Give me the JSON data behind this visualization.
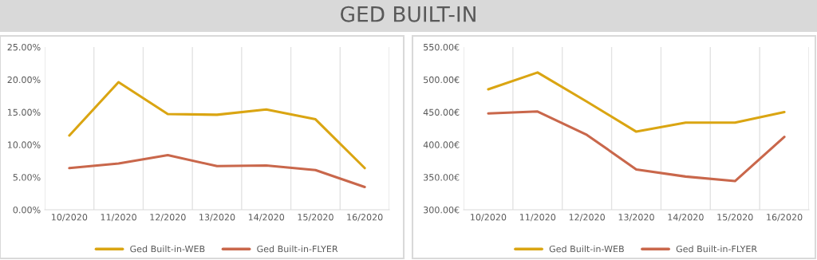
{
  "chart_data": [
    {
      "type": "line",
      "title": "GED BUILT-IN",
      "categories": [
        "10/2020",
        "11/2020",
        "12/2020",
        "13/2020",
        "14/2020",
        "15/2020",
        "16/2020"
      ],
      "series": [
        {
          "name": "Ged Built-in-WEB",
          "color": "#daa512",
          "values": [
            11.4,
            19.6,
            14.7,
            14.6,
            15.4,
            13.9,
            6.4
          ]
        },
        {
          "name": "Ged Built-in-FLYER",
          "color": "#c9674b",
          "values": [
            6.4,
            7.1,
            8.4,
            6.7,
            6.8,
            6.1,
            3.5
          ]
        }
      ],
      "ylim": [
        0,
        25
      ],
      "yticks": [
        {
          "value": 0,
          "label": "0.00%"
        },
        {
          "value": 5,
          "label": "5.00%"
        },
        {
          "value": 10,
          "label": "10.00%"
        },
        {
          "value": 15,
          "label": "15.00%"
        },
        {
          "value": 20,
          "label": "20.00%"
        },
        {
          "value": 25,
          "label": "25.00%"
        }
      ],
      "grid": "x",
      "legend": "bottom",
      "marker": "none",
      "line_style": "solid"
    },
    {
      "type": "line",
      "categories": [
        "10/2020",
        "11/2020",
        "12/2020",
        "13/2020",
        "14/2020",
        "15/2020",
        "16/2020"
      ],
      "series": [
        {
          "name": "Ged Built-in-WEB",
          "color": "#daa512",
          "values": [
            485,
            511,
            466,
            420,
            434,
            434,
            450
          ]
        },
        {
          "name": "Ged Built-in-FLYER",
          "color": "#c9674b",
          "values": [
            448,
            451,
            415,
            362,
            351,
            344,
            412
          ]
        }
      ],
      "ylim": [
        300,
        550
      ],
      "yticks": [
        {
          "value": 300,
          "label": "300.00€"
        },
        {
          "value": 350,
          "label": "350.00€"
        },
        {
          "value": 400,
          "label": "400.00€"
        },
        {
          "value": 450,
          "label": "450.00€"
        },
        {
          "value": 500,
          "label": "500.00€"
        },
        {
          "value": 550,
          "label": "550.00€"
        }
      ],
      "grid": "x",
      "legend": "bottom",
      "marker": "none",
      "line_style": "solid"
    }
  ]
}
